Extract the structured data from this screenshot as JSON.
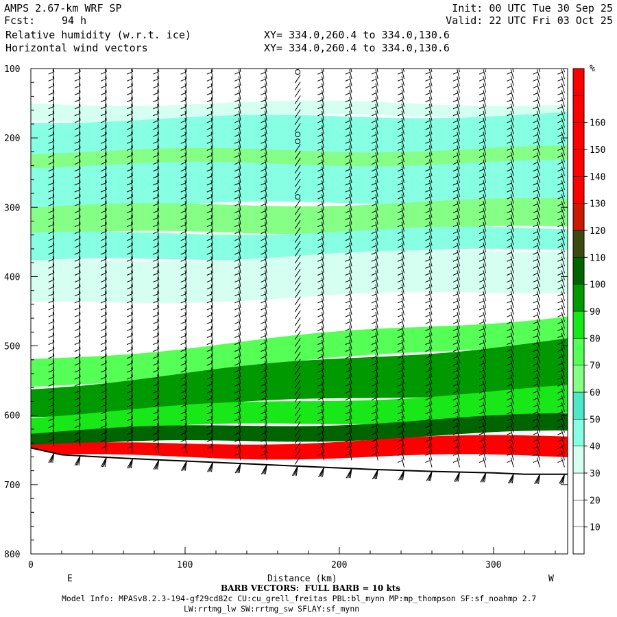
{
  "header": {
    "model": "AMPS 2.67-km WRF SP",
    "fcst_label": "Fcst:",
    "fcst_value": "94 h",
    "init": "Init: 00 UTC Tue 30 Sep 25",
    "valid": "Valid: 22 UTC Fri 03 Oct 25",
    "field1": "Relative humidity (w.r.t. ice)",
    "field2": "Horizontal wind vectors",
    "xy1": "XY= 334.0,260.4 to 334.0,130.6",
    "xy2": "XY= 334.0,260.4 to 334.0,130.6"
  },
  "footer": {
    "barb_note": "BARB VECTORS:  FULL BARB = 10 kts",
    "model_info": "Model Info: MPASv8.2.3-194-gf29cd82c CU:cu_grell_freitas PBL:bl_mynn MP:mp_thompson SF:sf_noahmp 2.7",
    "model_info2": "LW:rrtmg_lw SW:rrtmg_sw SFLAY:sf_mynn"
  },
  "colors": {
    "white": "#ffffff",
    "rh_30": "#d5fff0",
    "rh_40": "#86ffe2",
    "rh_50": "#4ee8c8",
    "rh_60": "#86ff86",
    "rh_70": "#55ff55",
    "rh_80": "#18e818",
    "rh_90": "#009a00",
    "rh_100": "#006400",
    "rh_110": "#3a4a10",
    "rh_120": "#cc1a00",
    "rh_130": "#ff0000"
  },
  "chart_data": {
    "type": "heatmap",
    "title": "Relative humidity (w.r.t. ice)",
    "overlay": "Horizontal wind vectors",
    "xlabel": "Distance (km)",
    "ylabel": "",
    "xlim": [
      0,
      348
    ],
    "ylim": [
      100,
      800
    ],
    "y_inverted": true,
    "x_ticks": [
      "0",
      "100",
      "200",
      "300"
    ],
    "y_ticks": [
      "100",
      "200",
      "300",
      "400",
      "500",
      "600",
      "700",
      "800"
    ],
    "x_end_labels": {
      "left": "E",
      "right": "W"
    },
    "colorbar": {
      "unit": "%",
      "levels": [
        10,
        20,
        30,
        40,
        50,
        60,
        70,
        80,
        90,
        100,
        110,
        120,
        130,
        140,
        150,
        160
      ],
      "tick_labels": [
        "10",
        "20",
        "30",
        "40",
        "50",
        "60",
        "70",
        "80",
        "90",
        "100",
        "110",
        "120",
        "130",
        "140",
        "150",
        "160"
      ],
      "colors": [
        "#ffffff",
        "#ffffff",
        "#ffffff",
        "#d5fff0",
        "#86ffe2",
        "#4ee8c8",
        "#86ff86",
        "#55ff55",
        "#18e818",
        "#009a00",
        "#006400",
        "#3a4a10",
        "#cc1a00",
        "#ff0000",
        "#ff0000",
        "#ff0000",
        "#ff0000",
        "#ff0000"
      ]
    },
    "terrain_pressure": [
      {
        "x": 0,
        "p": 647
      },
      {
        "x": 20,
        "p": 657
      },
      {
        "x": 60,
        "p": 662
      },
      {
        "x": 100,
        "p": 666
      },
      {
        "x": 140,
        "p": 670
      },
      {
        "x": 180,
        "p": 674
      },
      {
        "x": 220,
        "p": 678
      },
      {
        "x": 260,
        "p": 681
      },
      {
        "x": 300,
        "p": 683
      },
      {
        "x": 320,
        "p": 685
      },
      {
        "x": 348,
        "p": 685
      }
    ],
    "rh_layers_note": "approximate layer structure read from the figure",
    "rh_layers": [
      {
        "top": [
          150,
          150
        ],
        "bottom": [
          175,
          165
        ],
        "value": 35
      },
      {
        "top": [
          175,
          165
        ],
        "bottom": [
          300,
          290
        ],
        "value": 45
      },
      {
        "top": [
          220,
          215
        ],
        "bottom": [
          240,
          235
        ],
        "value": 65
      },
      {
        "top": [
          300,
          290
        ],
        "bottom": [
          340,
          330
        ],
        "value": 65
      },
      {
        "top": [
          340,
          330
        ],
        "bottom": [
          380,
          360
        ],
        "value": 45
      },
      {
        "top": [
          380,
          360
        ],
        "bottom": [
          440,
          420
        ],
        "value": 35
      },
      {
        "top": [
          520,
          455
        ],
        "bottom": [
          560,
          490
        ],
        "value": 75
      },
      {
        "top": [
          560,
          490
        ],
        "bottom": [
          600,
          560
        ],
        "value": 95
      },
      {
        "top": [
          600,
          560
        ],
        "bottom": [
          625,
          600
        ],
        "value": 85
      },
      {
        "top": [
          625,
          600
        ],
        "bottom": [
          645,
          625
        ],
        "value": 105
      },
      {
        "top": [
          645,
          630
        ],
        "bottom": [
          660,
          660
        ],
        "value": 130
      }
    ],
    "barb_columns_x": [
      15,
      32,
      49,
      66,
      83,
      101,
      118,
      136,
      153,
      173,
      190,
      208,
      225,
      242,
      260,
      278,
      295,
      313,
      330,
      346
    ],
    "calm_column_x": 173
  }
}
